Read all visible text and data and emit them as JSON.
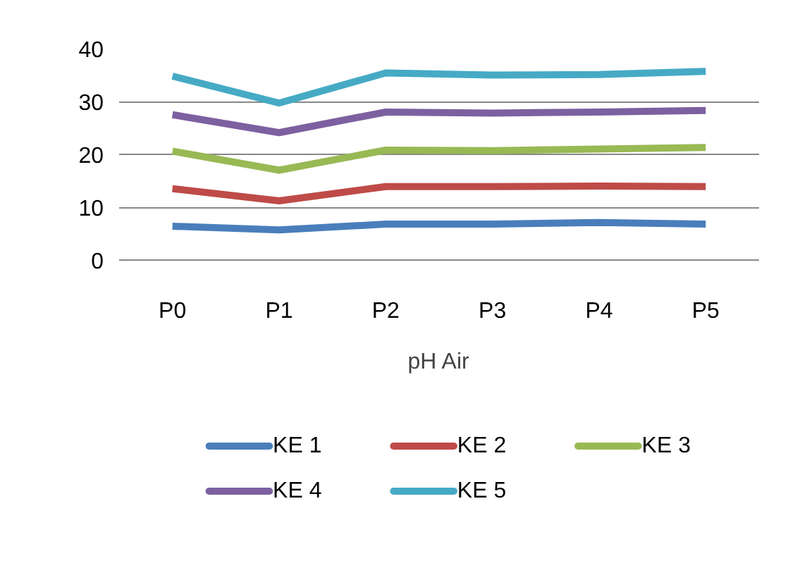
{
  "chart_data": {
    "type": "line",
    "xlabel": "pH Air",
    "categories": [
      "P0",
      "P1",
      "P2",
      "P3",
      "P4",
      "P5"
    ],
    "series": [
      {
        "name": "KE 1",
        "color": "#4a7ebb",
        "values": [
          6.4,
          5.7,
          6.8,
          6.8,
          7.1,
          6.8
        ]
      },
      {
        "name": "KE 2",
        "color": "#be4b48",
        "values": [
          13.5,
          11.2,
          13.9,
          13.9,
          14.0,
          13.9
        ]
      },
      {
        "name": "KE 3",
        "color": "#98b954",
        "values": [
          20.6,
          17.0,
          20.8,
          20.7,
          21.0,
          21.3
        ]
      },
      {
        "name": "KE 4",
        "color": "#7d60a0",
        "values": [
          27.5,
          24.1,
          28.0,
          27.8,
          28.0,
          28.3
        ]
      },
      {
        "name": "KE 5",
        "color": "#46aac5",
        "values": [
          34.8,
          29.7,
          35.4,
          35.0,
          35.1,
          35.7
        ]
      }
    ],
    "ylim": [
      0,
      40
    ],
    "yticks": [
      0,
      10,
      20,
      30,
      40
    ],
    "grid": "y",
    "legend": "bottom",
    "marker": "none",
    "line_style": "solid"
  }
}
